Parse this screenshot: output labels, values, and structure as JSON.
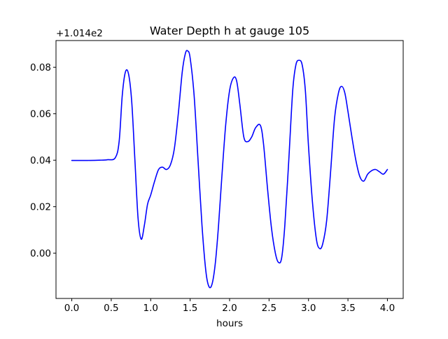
{
  "chart_data": {
    "type": "line",
    "title": "Water Depth h at gauge 105",
    "xlabel": "hours",
    "ylabel": "",
    "y_offset_label": "+1.014e2",
    "xlim": [
      -0.2,
      4.2
    ],
    "ylim": [
      -0.0195,
      0.0915
    ],
    "x_ticks": [
      0.0,
      0.5,
      1.0,
      1.5,
      2.0,
      2.5,
      3.0,
      3.5,
      4.0
    ],
    "x_tick_labels": [
      "0.0",
      "0.5",
      "1.0",
      "1.5",
      "2.0",
      "2.5",
      "3.0",
      "3.5",
      "4.0"
    ],
    "y_ticks": [
      0.0,
      0.02,
      0.04,
      0.06,
      0.08
    ],
    "y_tick_labels": [
      "0.00",
      "0.02",
      "0.04",
      "0.06",
      "0.08"
    ],
    "grid": false,
    "series": [
      {
        "color": "#0000ff",
        "x": [
          0.0,
          0.2,
          0.35,
          0.45,
          0.55,
          0.6,
          0.64,
          0.68,
          0.72,
          0.76,
          0.8,
          0.84,
          0.88,
          0.92,
          0.96,
          1.0,
          1.05,
          1.1,
          1.15,
          1.2,
          1.25,
          1.3,
          1.35,
          1.4,
          1.44,
          1.47,
          1.5,
          1.55,
          1.6,
          1.65,
          1.7,
          1.74,
          1.78,
          1.82,
          1.86,
          1.9,
          1.95,
          2.0,
          2.05,
          2.09,
          2.13,
          2.18,
          2.23,
          2.28,
          2.33,
          2.39,
          2.43,
          2.48,
          2.53,
          2.58,
          2.62,
          2.66,
          2.7,
          2.75,
          2.8,
          2.84,
          2.88,
          2.92,
          2.96,
          3.0,
          3.05,
          3.1,
          3.14,
          3.18,
          3.23,
          3.28,
          3.33,
          3.38,
          3.42,
          3.46,
          3.5,
          3.55,
          3.6,
          3.65,
          3.7,
          3.75,
          3.8,
          3.85,
          3.9,
          3.95,
          4.0
        ],
        "y": [
          0.0399,
          0.0399,
          0.04,
          0.0402,
          0.041,
          0.048,
          0.068,
          0.078,
          0.077,
          0.065,
          0.04,
          0.015,
          0.006,
          0.012,
          0.021,
          0.025,
          0.031,
          0.036,
          0.037,
          0.036,
          0.038,
          0.045,
          0.06,
          0.078,
          0.086,
          0.087,
          0.084,
          0.068,
          0.04,
          0.012,
          -0.008,
          -0.0145,
          -0.013,
          -0.004,
          0.012,
          0.032,
          0.055,
          0.07,
          0.0755,
          0.074,
          0.064,
          0.05,
          0.048,
          0.05,
          0.054,
          0.055,
          0.047,
          0.028,
          0.011,
          0.0,
          -0.004,
          -0.002,
          0.012,
          0.04,
          0.07,
          0.081,
          0.083,
          0.081,
          0.07,
          0.046,
          0.022,
          0.006,
          0.002,
          0.004,
          0.014,
          0.035,
          0.058,
          0.069,
          0.0718,
          0.069,
          0.061,
          0.05,
          0.04,
          0.033,
          0.031,
          0.034,
          0.0355,
          0.036,
          0.035,
          0.034,
          0.036
        ]
      }
    ]
  }
}
